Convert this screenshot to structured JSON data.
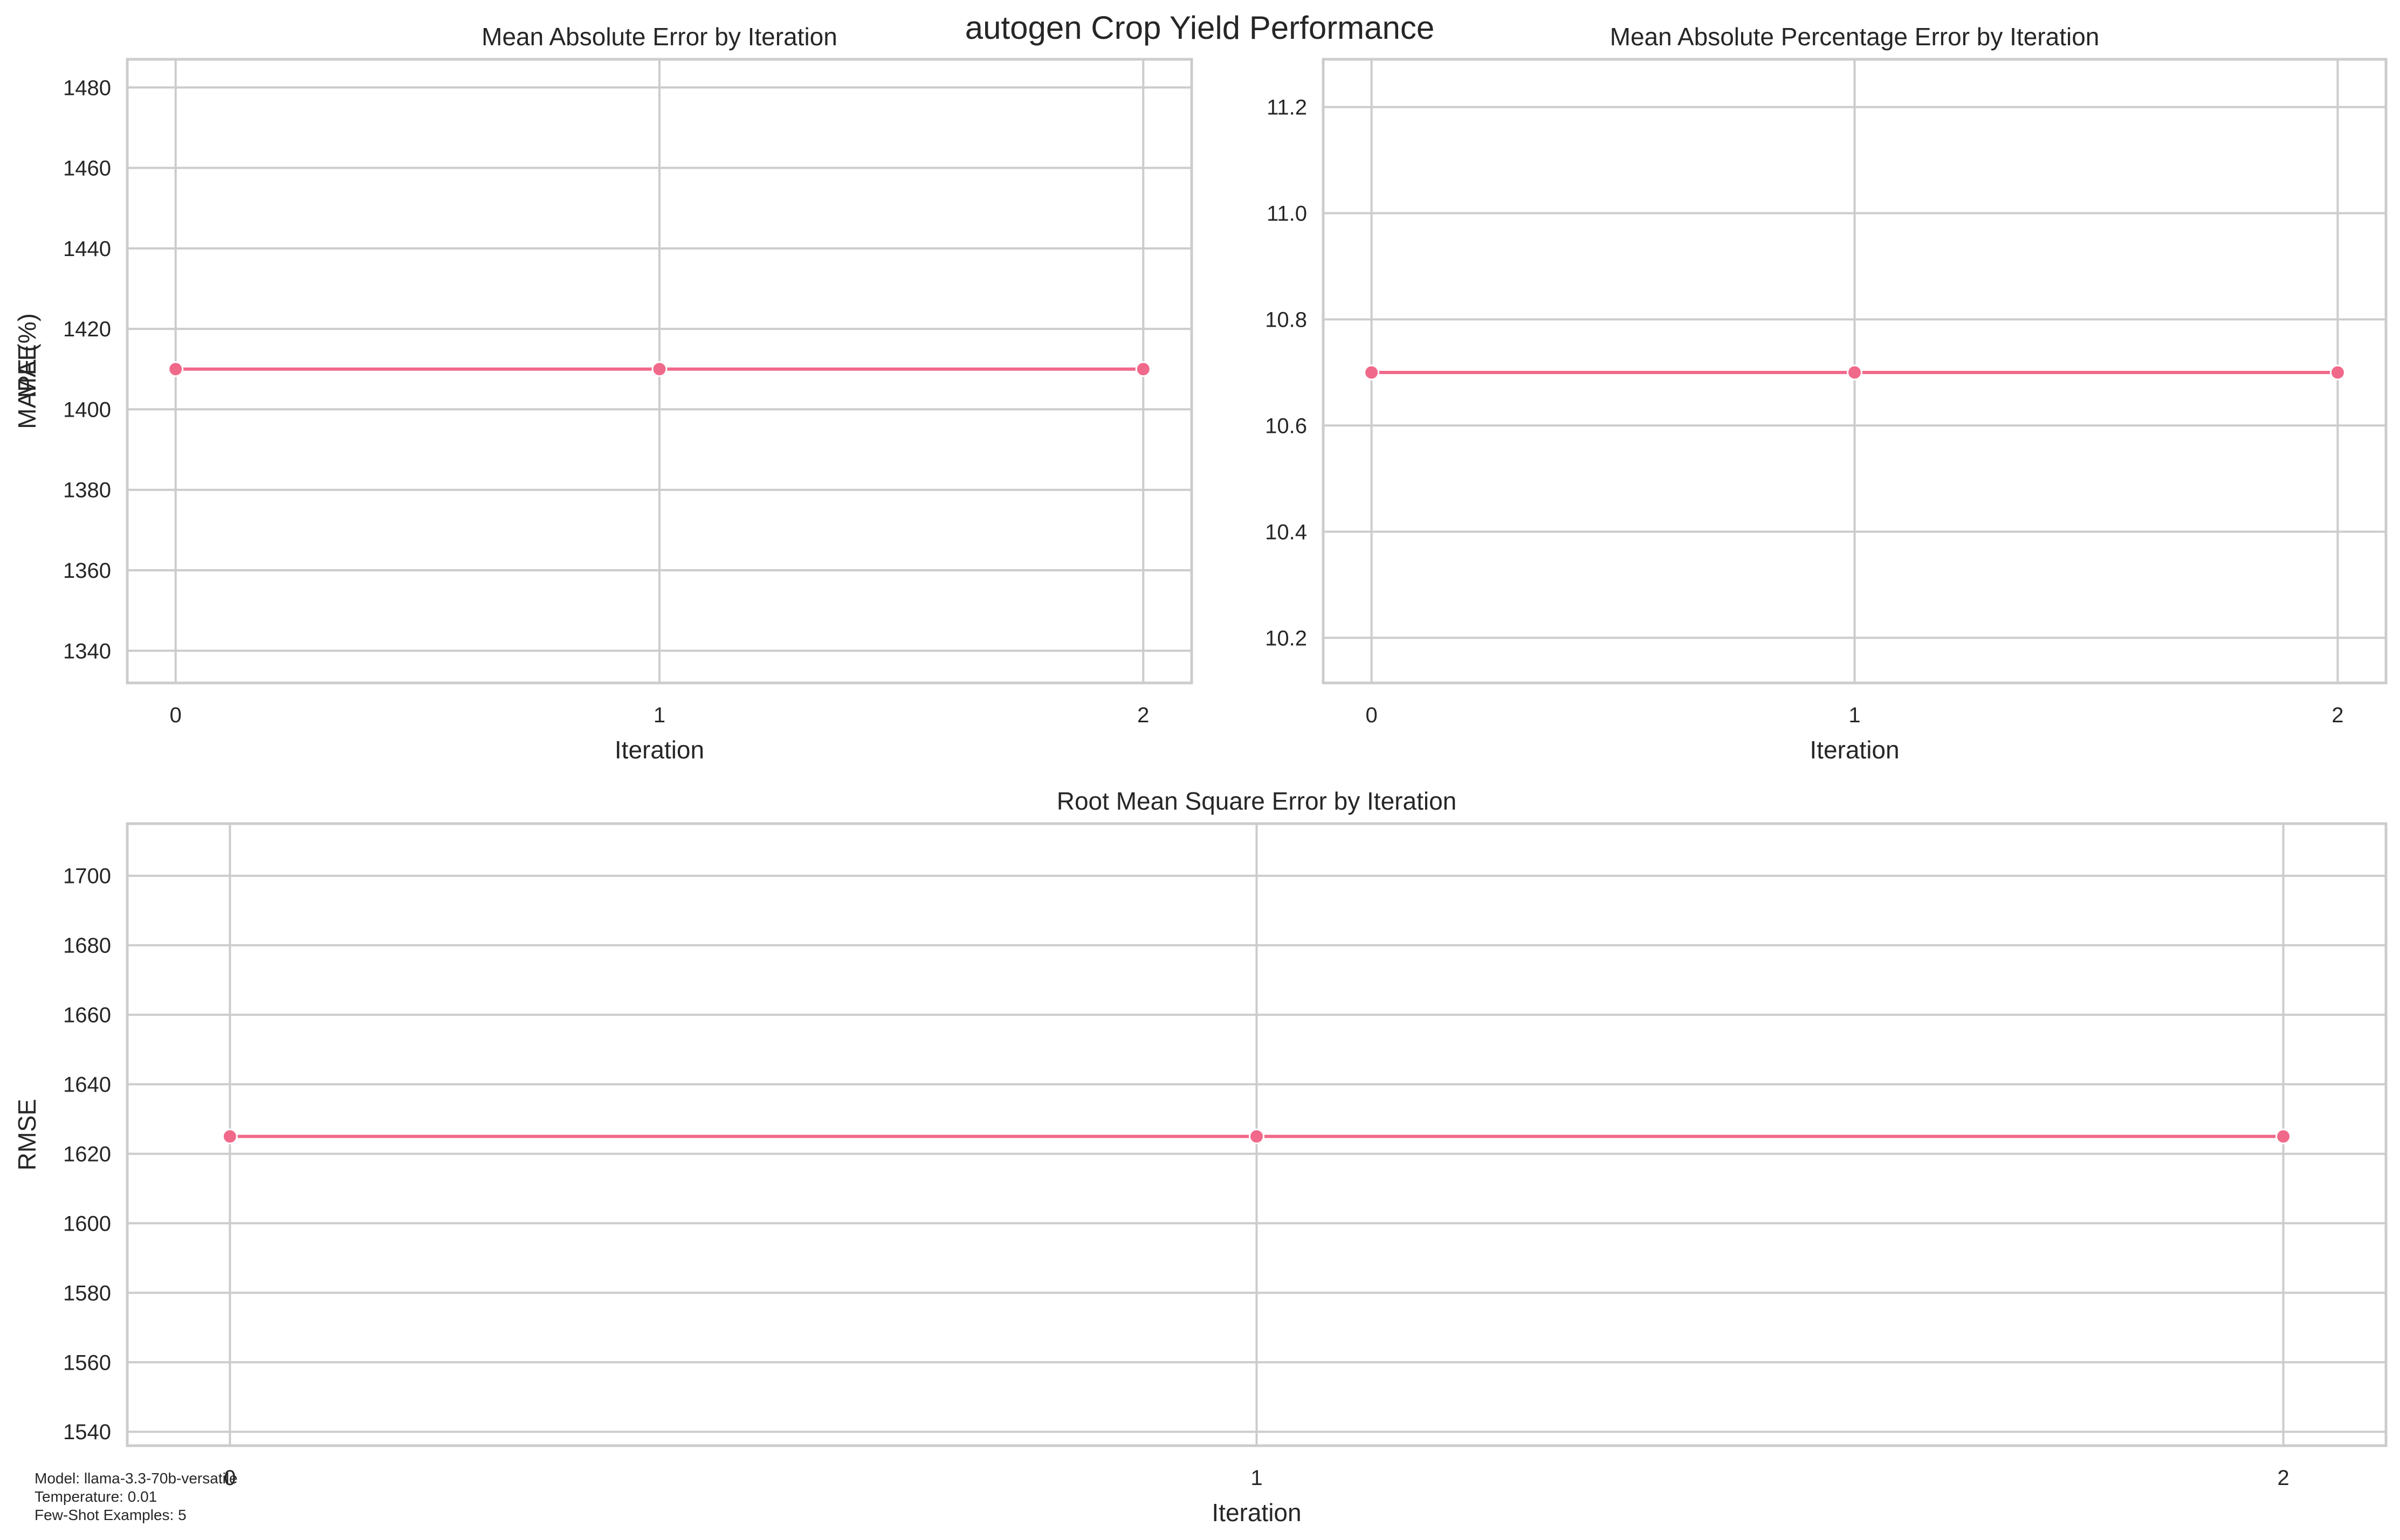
{
  "title": "autogen Crop Yield Performance",
  "footnote": [
    "Model: llama-3.3-70b-versatile",
    "Temperature: 0.01",
    "Few-Shot Examples: 5"
  ],
  "colors": {
    "series": "#f0698a",
    "grid": "#cccccc",
    "text": "#262626"
  },
  "chart_data": [
    {
      "type": "line",
      "title": "Mean Absolute Error by Iteration",
      "xlabel": "Iteration",
      "ylabel": "MAE",
      "x": [
        0,
        1,
        2
      ],
      "values": [
        1410,
        1410,
        1410
      ],
      "xlim": [
        -0.1,
        2.1
      ],
      "ylim": [
        1332,
        1487
      ],
      "xticks": [
        0,
        1,
        2
      ],
      "yticks": [
        1340,
        1360,
        1380,
        1400,
        1420,
        1440,
        1460,
        1480
      ],
      "grid": true
    },
    {
      "type": "line",
      "title": "Mean Absolute Percentage Error by Iteration",
      "xlabel": "Iteration",
      "ylabel": "MAPE (%)",
      "x": [
        0,
        1,
        2
      ],
      "values": [
        10.7,
        10.7,
        10.7
      ],
      "xlim": [
        -0.1,
        2.1
      ],
      "ylim": [
        10.115,
        11.29
      ],
      "xticks": [
        0,
        1,
        2
      ],
      "yticks": [
        10.2,
        10.4,
        10.6,
        10.8,
        11.0,
        11.2
      ],
      "ytick_decimals": 1,
      "grid": true
    },
    {
      "type": "line",
      "title": "Root Mean Square Error by Iteration",
      "xlabel": "Iteration",
      "ylabel": "RMSE",
      "x": [
        0,
        1,
        2
      ],
      "values": [
        1625,
        1625,
        1625
      ],
      "xlim": [
        -0.1,
        2.1
      ],
      "ylim": [
        1536,
        1715
      ],
      "xticks": [
        0,
        1,
        2
      ],
      "yticks": [
        1540,
        1560,
        1580,
        1600,
        1620,
        1640,
        1660,
        1680,
        1700
      ],
      "grid": true
    }
  ]
}
